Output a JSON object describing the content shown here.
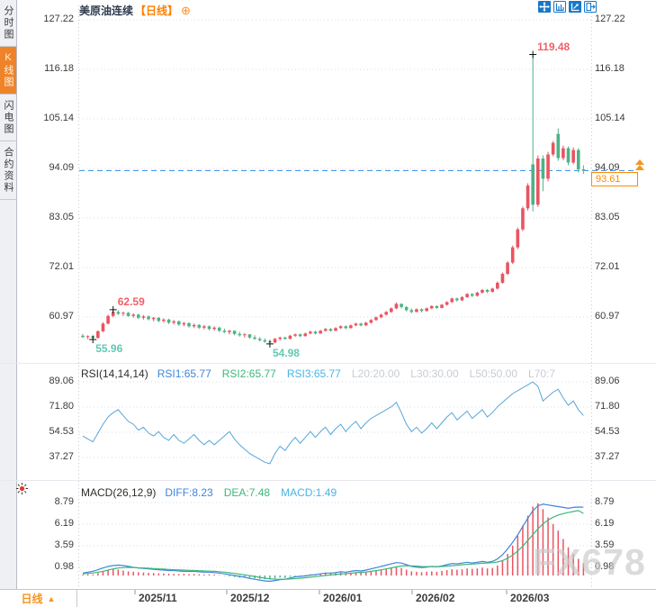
{
  "header": {
    "symbol": "美原油连续",
    "period_bracket": "【日线】",
    "zoom_glyph": "⊕"
  },
  "sidebar": {
    "tabs": [
      {
        "name": "tab-time-chart",
        "label": "分时图",
        "active": false
      },
      {
        "name": "tab-kline-chart",
        "label": "K线图",
        "active": true
      },
      {
        "name": "tab-flash-chart",
        "label": "闪电图",
        "active": false
      },
      {
        "name": "tab-contract-info",
        "label": "合约资料",
        "active": false
      }
    ]
  },
  "toolbar": {
    "icons": [
      "pan-crosshair-icon",
      "axis-scale-icon",
      "axis-arrow-icon",
      "exit-icon"
    ]
  },
  "rsi_header": {
    "title": "RSI(14,14,14)",
    "rsi1": "RSI1:65.77",
    "rsi2": "RSI2:65.77",
    "rsi3": "RSI3:65.77",
    "l20": "L20:20.00",
    "l30": "L30:30.00",
    "l50": "L50:50.00",
    "l70": "L70:7"
  },
  "macd_header": {
    "title": "MACD(26,12,9)",
    "diff": "DIFF:8.23",
    "dea": "DEA:7.48",
    "macd": "MACD:1.49"
  },
  "price_marker": {
    "axis_value": "94.09",
    "last_price": "93.61"
  },
  "footer": {
    "period": "日线",
    "arrow": "▲"
  },
  "watermark": "FX678",
  "x_axis": [
    "2025/11",
    "2025/12",
    "2026/01",
    "2026/02",
    "2026/03"
  ],
  "colors": {
    "up": "#ea5462",
    "down": "#4eb286",
    "accent_orange": "#f7941d",
    "diff_blue": "#3d85d8",
    "dea_green": "#3cb87c",
    "macd_cyan": "#49b4e6",
    "rsi_line": "#58a6d8",
    "dashed_line": "#2f8be8",
    "grid": "#d9dde4",
    "annotation_red": "#f25f68",
    "annotation_teal": "#62c9b4",
    "tick": "#8b97a6"
  },
  "chart_data": [
    {
      "type": "candlestick",
      "symbol": "美原油连续",
      "period": "日线",
      "y_ticks": [
        127.22,
        116.18,
        105.14,
        94.09,
        83.05,
        72.01,
        60.97
      ],
      "x_ticks": [
        "2025/11",
        "2025/12",
        "2026/01",
        "2026/02",
        "2026/03"
      ],
      "last_price": 93.61,
      "annotations": [
        {
          "text": "119.48",
          "candle": 89,
          "at": "high"
        },
        {
          "text": "62.59",
          "candle": 6,
          "at": "high"
        },
        {
          "text": "55.96",
          "candle": 2,
          "at": "low"
        },
        {
          "text": "54.98",
          "candle": 37,
          "at": "low"
        }
      ],
      "ohlc": [
        [
          56.8,
          57.2,
          56.3,
          56.5
        ],
        [
          56.5,
          56.9,
          56.0,
          56.7
        ],
        [
          56.7,
          57.0,
          55.96,
          56.3
        ],
        [
          56.3,
          58.0,
          56.2,
          57.8
        ],
        [
          57.8,
          59.8,
          57.6,
          59.5
        ],
        [
          59.5,
          61.5,
          59.3,
          61.2
        ],
        [
          61.2,
          62.59,
          60.9,
          62.1
        ],
        [
          62.1,
          62.5,
          61.4,
          61.7
        ],
        [
          61.7,
          62.2,
          61.2,
          61.9
        ],
        [
          61.9,
          62.1,
          61.0,
          61.2
        ],
        [
          61.2,
          61.8,
          60.8,
          61.5
        ],
        [
          61.5,
          61.7,
          60.5,
          60.8
        ],
        [
          60.8,
          61.4,
          60.4,
          61.1
        ],
        [
          61.1,
          61.3,
          60.2,
          60.5
        ],
        [
          60.5,
          61.0,
          60.0,
          60.8
        ],
        [
          60.8,
          61.0,
          59.8,
          60.1
        ],
        [
          60.1,
          60.7,
          59.7,
          60.4
        ],
        [
          60.4,
          60.6,
          59.4,
          59.7
        ],
        [
          59.7,
          60.3,
          59.3,
          60.0
        ],
        [
          60.0,
          60.2,
          59.0,
          59.3
        ],
        [
          59.3,
          59.9,
          58.9,
          59.6
        ],
        [
          59.6,
          59.8,
          58.6,
          58.9
        ],
        [
          58.9,
          59.5,
          58.5,
          59.2
        ],
        [
          59.2,
          59.4,
          58.3,
          58.6
        ],
        [
          58.6,
          59.2,
          58.2,
          58.9
        ],
        [
          58.9,
          59.1,
          58.0,
          58.3
        ],
        [
          58.3,
          58.9,
          57.9,
          58.6
        ],
        [
          58.6,
          58.8,
          57.6,
          57.9
        ],
        [
          57.9,
          58.4,
          57.4,
          57.6
        ],
        [
          57.6,
          58.1,
          57.1,
          57.9
        ],
        [
          57.9,
          58.0,
          56.9,
          57.2
        ],
        [
          57.2,
          57.7,
          56.6,
          56.9
        ],
        [
          56.9,
          57.4,
          56.4,
          57.1
        ],
        [
          57.1,
          57.2,
          56.1,
          56.4
        ],
        [
          56.4,
          56.9,
          55.9,
          56.1
        ],
        [
          56.1,
          56.5,
          55.5,
          55.8
        ],
        [
          55.8,
          56.2,
          55.2,
          55.5
        ],
        [
          55.5,
          55.9,
          54.98,
          55.3
        ],
        [
          55.3,
          56.3,
          55.1,
          56.1
        ],
        [
          56.1,
          56.6,
          55.7,
          56.4
        ],
        [
          56.4,
          56.6,
          55.9,
          56.1
        ],
        [
          56.1,
          57.0,
          56.0,
          56.8
        ],
        [
          56.8,
          57.3,
          56.5,
          57.1
        ],
        [
          57.1,
          57.3,
          56.5,
          56.7
        ],
        [
          56.7,
          57.5,
          56.6,
          57.3
        ],
        [
          57.3,
          57.9,
          57.1,
          57.7
        ],
        [
          57.7,
          57.9,
          57.1,
          57.3
        ],
        [
          57.3,
          58.1,
          57.2,
          57.9
        ],
        [
          57.9,
          58.5,
          57.7,
          58.3
        ],
        [
          58.3,
          58.5,
          57.7,
          57.9
        ],
        [
          57.9,
          58.7,
          57.8,
          58.5
        ],
        [
          58.5,
          59.1,
          58.3,
          58.9
        ],
        [
          58.9,
          59.1,
          58.2,
          58.5
        ],
        [
          58.5,
          59.3,
          58.4,
          59.1
        ],
        [
          59.1,
          59.7,
          58.9,
          59.5
        ],
        [
          59.5,
          59.7,
          58.9,
          59.1
        ],
        [
          59.1,
          59.9,
          59.0,
          59.7
        ],
        [
          59.7,
          60.5,
          59.5,
          60.3
        ],
        [
          60.3,
          61.1,
          60.1,
          60.9
        ],
        [
          60.9,
          61.7,
          60.7,
          61.5
        ],
        [
          61.5,
          62.3,
          61.3,
          62.1
        ],
        [
          62.1,
          63.1,
          61.9,
          62.9
        ],
        [
          62.9,
          64.2,
          62.7,
          63.9
        ],
        [
          63.9,
          64.0,
          62.9,
          63.2
        ],
        [
          63.2,
          63.4,
          62.2,
          62.5
        ],
        [
          62.5,
          62.9,
          61.8,
          62.1
        ],
        [
          62.1,
          62.9,
          62.0,
          62.7
        ],
        [
          62.7,
          62.9,
          62.0,
          62.3
        ],
        [
          62.3,
          63.1,
          62.2,
          62.9
        ],
        [
          62.9,
          63.6,
          62.7,
          63.4
        ],
        [
          63.4,
          63.6,
          62.8,
          63.0
        ],
        [
          63.0,
          63.9,
          62.9,
          63.7
        ],
        [
          63.7,
          64.5,
          63.5,
          64.3
        ],
        [
          64.3,
          65.3,
          64.1,
          65.1
        ],
        [
          65.1,
          65.3,
          64.4,
          64.7
        ],
        [
          64.7,
          65.6,
          64.5,
          65.4
        ],
        [
          65.4,
          66.3,
          65.2,
          66.1
        ],
        [
          66.1,
          66.3,
          65.4,
          65.7
        ],
        [
          65.7,
          66.6,
          65.5,
          66.4
        ],
        [
          66.4,
          67.2,
          66.2,
          67.0
        ],
        [
          67.0,
          67.2,
          66.3,
          66.6
        ],
        [
          66.6,
          67.5,
          66.4,
          67.3
        ],
        [
          67.3,
          68.9,
          67.1,
          68.6
        ],
        [
          68.6,
          70.9,
          68.4,
          70.6
        ],
        [
          70.6,
          73.4,
          70.3,
          73.1
        ],
        [
          73.1,
          76.9,
          72.8,
          76.5
        ],
        [
          76.5,
          80.9,
          76.1,
          80.5
        ],
        [
          80.5,
          85.6,
          80.1,
          85.2
        ],
        [
          85.2,
          90.8,
          84.7,
          90.3
        ],
        [
          95.0,
          119.48,
          84.5,
          86.0
        ],
        [
          86.0,
          97.0,
          85.5,
          96.3
        ],
        [
          96.3,
          97.0,
          89.0,
          91.8
        ],
        [
          91.8,
          97.8,
          91.2,
          97.2
        ],
        [
          97.2,
          100.2,
          96.8,
          99.8
        ],
        [
          101.8,
          103.0,
          95.8,
          96.4
        ],
        [
          96.4,
          99.2,
          95.9,
          98.6
        ],
        [
          98.6,
          99.0,
          94.8,
          95.4
        ],
        [
          95.4,
          98.8,
          95.0,
          98.2
        ],
        [
          98.2,
          98.6,
          93.2,
          93.9
        ],
        [
          93.9,
          94.8,
          92.9,
          93.61
        ]
      ]
    },
    {
      "type": "line",
      "name": "RSI",
      "params": "(14,14,14)",
      "rsi1": 65.77,
      "rsi2": 65.77,
      "rsi3": 65.77,
      "y_ticks": [
        89.06,
        71.8,
        54.53,
        37.27
      ],
      "values": [
        52,
        50,
        48,
        54,
        60,
        65,
        68,
        70,
        66,
        62,
        60,
        56,
        58,
        54,
        52,
        55,
        51,
        49,
        53,
        49,
        47,
        50,
        53,
        49,
        46,
        49,
        46,
        49,
        52,
        55,
        50,
        46,
        43,
        40,
        38,
        36,
        34,
        33,
        40,
        45,
        42,
        47,
        51,
        47,
        51,
        55,
        51,
        55,
        58,
        53,
        57,
        60,
        55,
        59,
        62,
        57,
        61,
        64,
        66,
        68,
        70,
        72,
        75,
        68,
        60,
        55,
        58,
        54,
        57,
        61,
        57,
        61,
        65,
        68,
        63,
        66,
        69,
        64,
        67,
        70,
        65,
        68,
        72,
        75,
        78,
        81,
        83,
        85,
        87,
        89,
        86,
        76,
        79,
        82,
        84,
        78,
        73,
        76,
        70,
        66
      ]
    },
    {
      "type": "macd",
      "name": "MACD",
      "params": "(26,12,9)",
      "diff_last": 8.23,
      "dea_last": 7.48,
      "macd_last": 1.49,
      "y_ticks": [
        8.79,
        6.19,
        3.59,
        0.98
      ],
      "hist": [
        0.1,
        0.15,
        0.12,
        0.3,
        0.5,
        0.7,
        0.8,
        0.72,
        0.6,
        0.5,
        0.45,
        0.4,
        0.36,
        0.32,
        0.3,
        0.26,
        0.24,
        0.22,
        0.2,
        0.18,
        0.2,
        0.16,
        0.18,
        0.15,
        0.12,
        0.14,
        0.12,
        0.05,
        -0.05,
        -0.1,
        -0.18,
        -0.25,
        -0.22,
        -0.3,
        -0.35,
        -0.4,
        -0.45,
        -0.5,
        -0.35,
        -0.25,
        -0.3,
        -0.15,
        -0.05,
        -0.1,
        0.05,
        0.15,
        0.1,
        0.2,
        0.3,
        0.25,
        0.3,
        0.35,
        0.3,
        0.35,
        0.4,
        0.35,
        0.4,
        0.5,
        0.6,
        0.7,
        0.8,
        0.9,
        1.0,
        0.9,
        0.7,
        0.5,
        0.45,
        0.4,
        0.45,
        0.5,
        0.45,
        0.55,
        0.65,
        0.75,
        0.7,
        0.75,
        0.85,
        0.8,
        0.85,
        0.95,
        0.85,
        0.9,
        1.2,
        1.8,
        2.6,
        3.6,
        4.8,
        6.0,
        7.2,
        8.3,
        8.7,
        8.0,
        7.0,
        6.2,
        5.4,
        4.4,
        3.4,
        2.6,
        2.0,
        1.49
      ],
      "diff": [
        0.3,
        0.4,
        0.5,
        0.7,
        0.9,
        1.1,
        1.2,
        1.25,
        1.2,
        1.1,
        1.0,
        0.9,
        0.85,
        0.8,
        0.75,
        0.7,
        0.65,
        0.6,
        0.6,
        0.55,
        0.5,
        0.5,
        0.5,
        0.45,
        0.4,
        0.4,
        0.35,
        0.3,
        0.2,
        0.1,
        0.0,
        -0.1,
        -0.2,
        -0.35,
        -0.45,
        -0.55,
        -0.65,
        -0.7,
        -0.6,
        -0.5,
        -0.45,
        -0.3,
        -0.15,
        -0.1,
        -0.05,
        0.05,
        0.1,
        0.2,
        0.3,
        0.3,
        0.35,
        0.45,
        0.4,
        0.5,
        0.6,
        0.55,
        0.65,
        0.8,
        0.95,
        1.1,
        1.25,
        1.4,
        1.55,
        1.5,
        1.3,
        1.1,
        1.0,
        0.95,
        1.0,
        1.1,
        1.05,
        1.15,
        1.3,
        1.45,
        1.4,
        1.5,
        1.6,
        1.5,
        1.6,
        1.7,
        1.6,
        1.7,
        2.0,
        2.5,
        3.2,
        4.0,
        4.9,
        5.9,
        6.9,
        7.8,
        8.4,
        8.6,
        8.5,
        8.4,
        8.3,
        8.2,
        8.1,
        8.2,
        8.25,
        8.23
      ],
      "dea": [
        0.2,
        0.25,
        0.3,
        0.4,
        0.5,
        0.65,
        0.8,
        0.9,
        0.95,
        0.98,
        0.97,
        0.93,
        0.9,
        0.87,
        0.83,
        0.8,
        0.77,
        0.73,
        0.7,
        0.68,
        0.65,
        0.62,
        0.6,
        0.58,
        0.55,
        0.52,
        0.5,
        0.46,
        0.4,
        0.33,
        0.25,
        0.17,
        0.08,
        -0.02,
        -0.12,
        -0.22,
        -0.32,
        -0.4,
        -0.44,
        -0.45,
        -0.45,
        -0.42,
        -0.37,
        -0.32,
        -0.27,
        -0.2,
        -0.14,
        -0.07,
        0.0,
        0.06,
        0.12,
        0.18,
        0.23,
        0.28,
        0.34,
        0.38,
        0.43,
        0.5,
        0.59,
        0.69,
        0.8,
        0.92,
        1.05,
        1.14,
        1.17,
        1.16,
        1.13,
        1.09,
        1.07,
        1.08,
        1.07,
        1.09,
        1.13,
        1.19,
        1.23,
        1.29,
        1.35,
        1.38,
        1.42,
        1.48,
        1.5,
        1.54,
        1.63,
        1.8,
        2.08,
        2.46,
        2.95,
        3.54,
        4.21,
        4.93,
        5.62,
        6.22,
        6.68,
        7.02,
        7.28,
        7.46,
        7.59,
        7.71,
        7.82,
        7.48
      ]
    }
  ]
}
